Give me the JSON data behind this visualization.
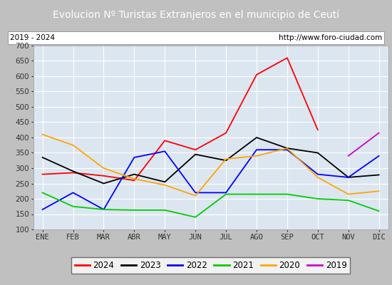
{
  "title": "Evolucion Nº Turistas Extranjeros en el municipio de Ceutí",
  "subtitle_left": "2019 - 2024",
  "subtitle_right": "http://www.foro-ciudad.com",
  "months": [
    "ENE",
    "FEB",
    "MAR",
    "ABR",
    "MAY",
    "JUN",
    "JUL",
    "AGO",
    "SEP",
    "OCT",
    "NOV",
    "DIC"
  ],
  "ylim": [
    100,
    700
  ],
  "yticks": [
    100,
    150,
    200,
    250,
    300,
    350,
    400,
    450,
    500,
    550,
    600,
    650,
    700
  ],
  "series": {
    "2024": {
      "color": "#ff0000",
      "values": [
        280,
        285,
        275,
        260,
        390,
        360,
        415,
        605,
        660,
        425,
        null,
        null
      ]
    },
    "2023": {
      "color": "#000000",
      "values": [
        335,
        290,
        250,
        280,
        255,
        345,
        325,
        400,
        365,
        350,
        270,
        278
      ]
    },
    "2022": {
      "color": "#0000ff",
      "values": [
        165,
        220,
        165,
        335,
        355,
        220,
        220,
        360,
        360,
        280,
        270,
        340
      ]
    },
    "2021": {
      "color": "#00cc00",
      "values": [
        220,
        175,
        165,
        163,
        163,
        140,
        215,
        215,
        215,
        200,
        195,
        160
      ]
    },
    "2020": {
      "color": "#ffa500",
      "values": [
        410,
        375,
        300,
        265,
        245,
        210,
        330,
        340,
        365,
        270,
        215,
        225
      ]
    },
    "2019": {
      "color": "#cc00cc",
      "values": [
        null,
        null,
        null,
        null,
        null,
        null,
        null,
        null,
        null,
        null,
        340,
        415
      ]
    }
  },
  "title_bg_color": "#4472c4",
  "title_text_color": "#ffffff",
  "plot_bg_color": "#dce6f1",
  "fig_bg_color": "#c0c0c0",
  "box_bg_color": "#ffffff",
  "grid_color": "#ffffff",
  "title_fontsize": 10,
  "axis_fontsize": 7.5,
  "legend_fontsize": 8.5
}
